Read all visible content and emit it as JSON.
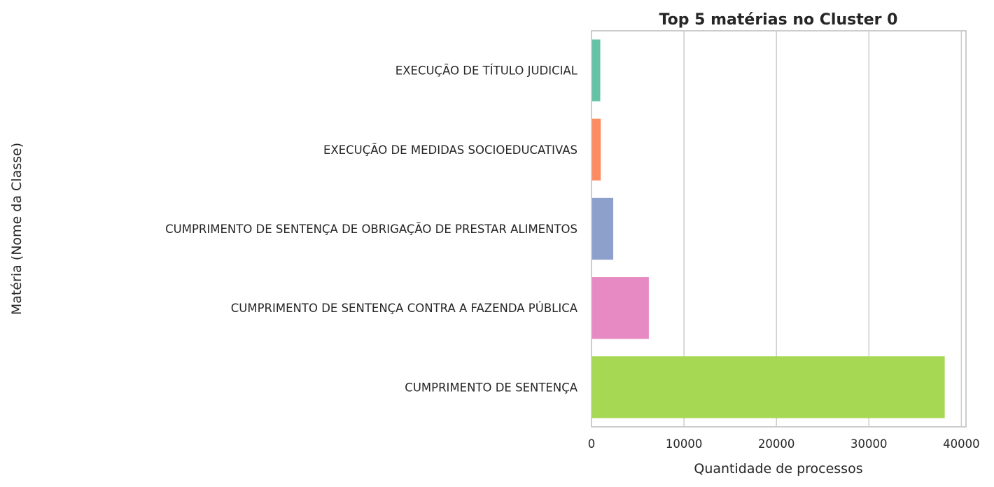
{
  "chart_data": {
    "type": "bar",
    "orientation": "horizontal",
    "title": "Top 5 matérias no Cluster 0",
    "xlabel": "Quantidade de processos",
    "ylabel": "Matéria (Nome da Classe)",
    "xlim": [
      0,
      40500
    ],
    "xticks": [
      0,
      10000,
      20000,
      30000,
      40000
    ],
    "xtick_labels": [
      "0",
      "10000",
      "20000",
      "30000",
      "40000"
    ],
    "grid": "x",
    "categories": [
      "EXECUÇÃO DE TÍTULO JUDICIAL",
      "EXECUÇÃO DE MEDIDAS SOCIOEDUCATIVAS",
      "CUMPRIMENTO DE SENTENÇA DE OBRIGAÇÃO DE PRESTAR ALIMENTOS",
      "CUMPRIMENTO DE SENTENÇA CONTRA A FAZENDA PÚBLICA",
      "CUMPRIMENTO DE SENTENÇA"
    ],
    "values": [
      950,
      1000,
      2350,
      6200,
      38200
    ],
    "colors": [
      "#66c2a5",
      "#fc8d62",
      "#8da0cb",
      "#e78ac3",
      "#a6d854"
    ]
  }
}
